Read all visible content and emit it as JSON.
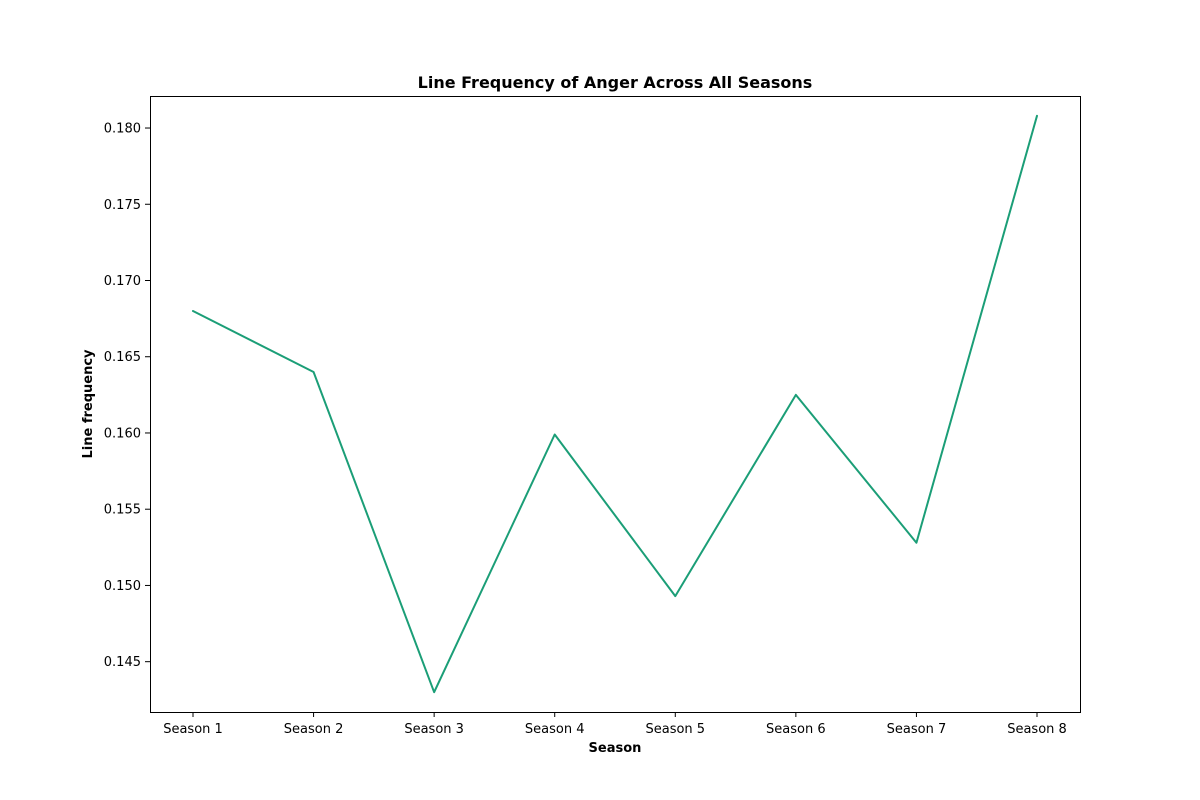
{
  "chart_data": {
    "type": "line",
    "title": "Line Frequency of Anger Across All Seasons",
    "xlabel": "Season",
    "ylabel": "Line frequency",
    "categories": [
      "Season 1",
      "Season 2",
      "Season 3",
      "Season 4",
      "Season 5",
      "Season 6",
      "Season 7",
      "Season 8"
    ],
    "series": [
      {
        "values": [
          0.168,
          0.164,
          0.143,
          0.1599,
          0.1493,
          0.1625,
          0.1528,
          0.1808
        ],
        "color": "#1b9e77"
      }
    ],
    "yticks": [
      "0.145",
      "0.150",
      "0.155",
      "0.160",
      "0.165",
      "0.170",
      "0.175",
      "0.180"
    ],
    "ylim": [
      0.1417,
      0.1821
    ],
    "grid": false,
    "legend": "none"
  }
}
